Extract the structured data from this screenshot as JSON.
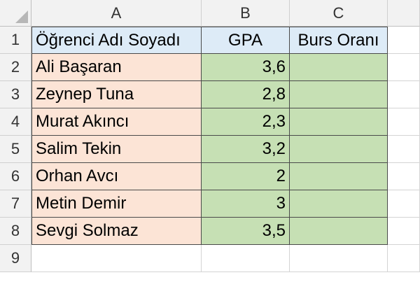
{
  "columns": [
    "A",
    "B",
    "C"
  ],
  "rows": [
    "1",
    "2",
    "3",
    "4",
    "5",
    "6",
    "7",
    "8",
    "9"
  ],
  "headers": {
    "name": "Öğrenci Adı Soyadı",
    "gpa": "GPA",
    "scholarship": "Burs Oranı"
  },
  "students": [
    {
      "name": "Ali Başaran",
      "gpa": "3,6",
      "scholarship": ""
    },
    {
      "name": "Zeynep Tuna",
      "gpa": "2,8",
      "scholarship": ""
    },
    {
      "name": "Murat Akıncı",
      "gpa": "2,3",
      "scholarship": ""
    },
    {
      "name": "Salim Tekin",
      "gpa": "3,2",
      "scholarship": ""
    },
    {
      "name": "Orhan Avcı",
      "gpa": "2",
      "scholarship": ""
    },
    {
      "name": "Metin Demir",
      "gpa": "3",
      "scholarship": ""
    },
    {
      "name": "Sevgi Solmaz",
      "gpa": "3,5",
      "scholarship": ""
    }
  ],
  "colors": {
    "header_fill": "#ddebf7",
    "name_fill": "#fce4d6",
    "gpa_fill": "#c6e0b4",
    "sheet_chrome": "#f2f2f2"
  }
}
